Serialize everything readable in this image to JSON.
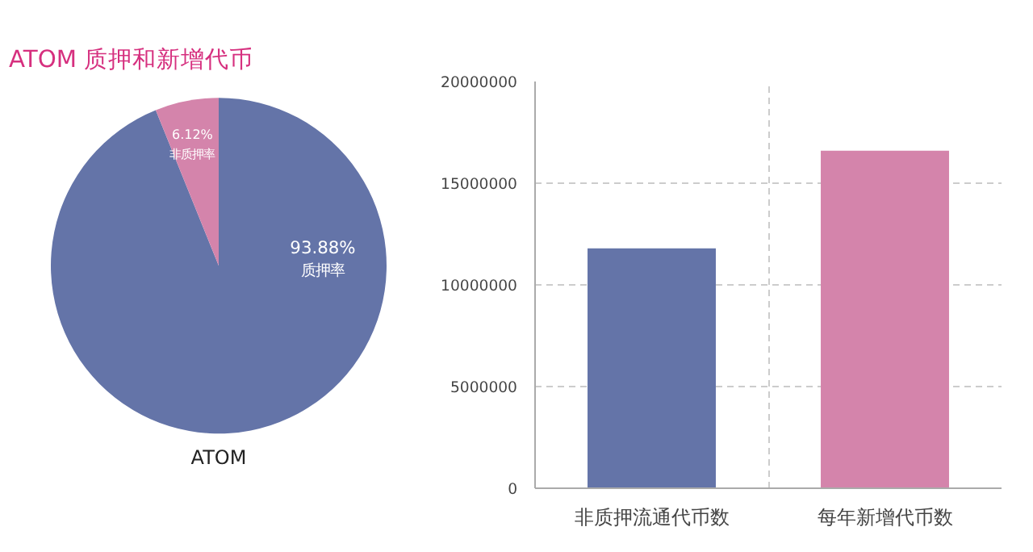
{
  "chart_data": [
    {
      "type": "pie",
      "title": "ATOM 质押和新增代币",
      "xlabel": "ATOM",
      "categories": [
        "质押率",
        "非质押率"
      ],
      "values": [
        93.88,
        6.12
      ],
      "colors": [
        "#6474a8",
        "#d484ab"
      ],
      "value_labels": [
        "93.88%",
        "6.12%"
      ]
    },
    {
      "type": "bar",
      "categories": [
        "非质押流通代币数",
        "每年新增代币数"
      ],
      "values": [
        11800000,
        16600000
      ],
      "colors": [
        "#6474a8",
        "#d484ab"
      ],
      "ylim": [
        0,
        20000000
      ],
      "yticks": [
        0,
        5000000,
        10000000,
        15000000,
        20000000
      ],
      "grid": true
    }
  ]
}
